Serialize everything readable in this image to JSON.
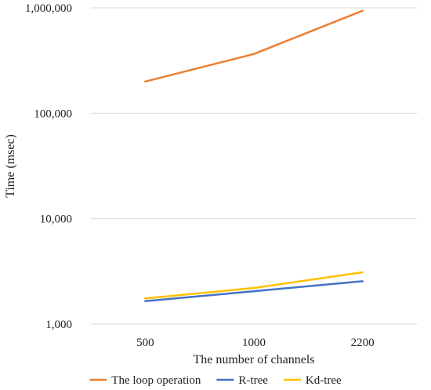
{
  "chart_data": {
    "type": "line",
    "title": "",
    "xlabel": "The number of channels",
    "ylabel": "Time (msec)",
    "yscale": "log",
    "ylim": [
      1000,
      1000000
    ],
    "y_ticks": [
      "1,000",
      "10,000",
      "100,000",
      "1,000,000"
    ],
    "categories": [
      "500",
      "1000",
      "2200"
    ],
    "series": [
      {
        "name": "The loop operation",
        "color": "#ED7D31",
        "values": [
          200000,
          365000,
          940000
        ]
      },
      {
        "name": "R-tree",
        "color": "#4472C4",
        "values": [
          1650,
          2050,
          2550
        ]
      },
      {
        "name": "Kd-tree",
        "color": "#FFC000",
        "values": [
          1750,
          2200,
          3100
        ]
      }
    ],
    "grid": "horizontal",
    "legend": "bottom"
  }
}
